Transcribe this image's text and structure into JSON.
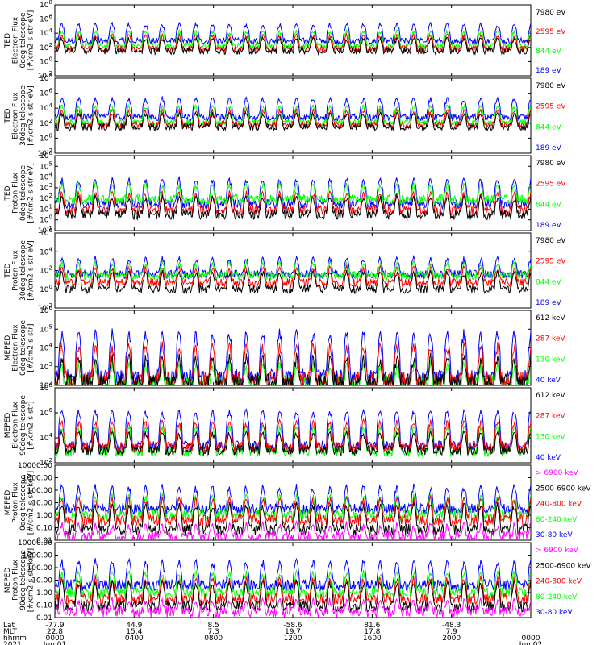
{
  "chart_data": [
    {
      "type": "line",
      "ylabel_lines": [
        "TED",
        "Electron Flux",
        "0deg telescope",
        "[#/cm2-s-str-eV]"
      ],
      "yscale": "log",
      "y_tick_labels": [
        "10^-2",
        "10^0",
        "10^2",
        "10^4",
        "10^6",
        "10^8"
      ],
      "ylim": [
        0.01,
        100000000
      ],
      "xlim": [
        0,
        24
      ],
      "series": [
        {
          "name": "7980 eV",
          "color": "#000000",
          "base": 30,
          "spike": 3000
        },
        {
          "name": "2595 eV",
          "color": "#ff0000",
          "base": 60,
          "spike": 8000
        },
        {
          "name": "844 eV",
          "color": "#00ff00",
          "base": 150,
          "spike": 30000
        },
        {
          "name": "189 eV",
          "color": "#0000ff",
          "base": 800,
          "spike": 300000
        }
      ]
    },
    {
      "type": "line",
      "ylabel_lines": [
        "TED",
        "Electron Flux",
        "30deg telescope",
        "[#/cm2-s-str-eV]"
      ],
      "yscale": "log",
      "y_tick_labels": [
        "10^-2",
        "10^0",
        "10^2",
        "10^4",
        "10^6",
        "10^8"
      ],
      "ylim": [
        0.01,
        100000000
      ],
      "xlim": [
        0,
        24
      ],
      "series": [
        {
          "name": "7980 eV",
          "color": "#000000",
          "base": 30,
          "spike": 3000
        },
        {
          "name": "2595 eV",
          "color": "#ff0000",
          "base": 60,
          "spike": 8000
        },
        {
          "name": "844 eV",
          "color": "#00ff00",
          "base": 120,
          "spike": 30000
        },
        {
          "name": "189 eV",
          "color": "#0000ff",
          "base": 600,
          "spike": 300000
        }
      ]
    },
    {
      "type": "line",
      "ylabel_lines": [
        "TED",
        "Proton Flux",
        "0deg telescope",
        "[#/cm2-s-str-eV]"
      ],
      "yscale": "log",
      "y_tick_labels": [
        "10^-1",
        "10^0",
        "10^1",
        "10^2",
        "10^3",
        "10^4",
        "10^5",
        "10^6"
      ],
      "ylim": [
        0.1,
        1000000
      ],
      "xlim": [
        0,
        24
      ],
      "series": [
        {
          "name": "7980 eV",
          "color": "#000000",
          "base": 3,
          "spike": 200
        },
        {
          "name": "2595 eV",
          "color": "#ff0000",
          "base": 8,
          "spike": 500
        },
        {
          "name": "844 eV",
          "color": "#00ff00",
          "base": 80,
          "spike": 3000
        },
        {
          "name": "189 eV",
          "color": "#0000ff",
          "base": 30,
          "spike": 10000
        }
      ]
    },
    {
      "type": "line",
      "ylabel_lines": [
        "TED",
        "Proton Flux",
        "30deg telescope",
        "[#/cm2-s-str-eV]"
      ],
      "yscale": "log",
      "y_tick_labels": [
        "10^-2",
        "10^0",
        "10^2",
        "10^4",
        "10^6"
      ],
      "ylim": [
        0.01,
        1000000
      ],
      "xlim": [
        0,
        24
      ],
      "series": [
        {
          "name": "7980 eV",
          "color": "#000000",
          "base": 1,
          "spike": 100
        },
        {
          "name": "2595 eV",
          "color": "#ff0000",
          "base": 5,
          "spike": 300
        },
        {
          "name": "844 eV",
          "color": "#00ff00",
          "base": 30,
          "spike": 1000
        },
        {
          "name": "189 eV",
          "color": "#0000ff",
          "base": 40,
          "spike": 3000
        }
      ]
    },
    {
      "type": "line",
      "ylabel_lines": [
        "MEPED",
        "Electron Flux",
        "0deg telescope",
        "[#/cm2-s-str]"
      ],
      "yscale": "log",
      "y_tick_labels": [
        "10^2",
        "10^3",
        "10^4",
        "10^5",
        "10^6"
      ],
      "ylim": [
        100,
        1000000
      ],
      "xlim": [
        0,
        24
      ],
      "series": [
        {
          "name": "612 keV",
          "color": "#000000",
          "base": 150,
          "spike": 5000
        },
        {
          "name": "287 keV",
          "color": "#ff0000",
          "base": 200,
          "spike": 20000
        },
        {
          "name": "130 keV",
          "color": "#00ff00",
          "base": 130,
          "spike": 2000
        },
        {
          "name": "40 keV",
          "color": "#0000ff",
          "base": 250,
          "spike": 100000
        }
      ]
    },
    {
      "type": "line",
      "ylabel_lines": [
        "MEPED",
        "Electron Flux",
        "90deg telescope",
        "[#/cm2-s-str]"
      ],
      "yscale": "log",
      "y_tick_labels": [
        "10^2",
        "10^4",
        "10^6",
        "10^8"
      ],
      "ylim": [
        10,
        100000000
      ],
      "xlim": [
        0,
        24
      ],
      "series": [
        {
          "name": "612 keV",
          "color": "#000000",
          "base": 150,
          "spike": 10000
        },
        {
          "name": "287 keV",
          "color": "#ff0000",
          "base": 300,
          "spike": 100000
        },
        {
          "name": "130 keV",
          "color": "#00ff00",
          "base": 100,
          "spike": 30000
        },
        {
          "name": "40 keV",
          "color": "#0000ff",
          "base": 400,
          "spike": 1000000
        }
      ]
    },
    {
      "type": "line",
      "ylabel_lines": [
        "MEPED",
        "Proton Flux",
        "0deg telescope",
        "[#/cm2-s-str-keV]"
      ],
      "yscale": "log",
      "y_tick_labels": [
        "0.01",
        "0.10",
        "1.00",
        "10.00",
        "100.00",
        "1000.00",
        "10000.00"
      ],
      "ylim": [
        0.01,
        10000
      ],
      "xlim": [
        0,
        24
      ],
      "series": [
        {
          "name": "> 6900 keV",
          "color": "#ff00ff",
          "base": 0.02,
          "spike": 0.3
        },
        {
          "name": "2500-6900 keV",
          "color": "#000000",
          "base": 0.07,
          "spike": 10
        },
        {
          "name": "240-800 keV",
          "color": "#ff0000",
          "base": 0.4,
          "spike": 30
        },
        {
          "name": "80-240 keV",
          "color": "#00ff00",
          "base": 1,
          "spike": 50
        },
        {
          "name": "30-80 keV",
          "color": "#0000ff",
          "base": 3,
          "spike": 300
        }
      ]
    },
    {
      "type": "line",
      "ylabel_lines": [
        "MEPED",
        "Proton Flux",
        "90deg telescope",
        "[#/cm2-s-str-keV]"
      ],
      "yscale": "log",
      "y_tick_labels": [
        "0.01",
        "0.10",
        "1.00",
        "10.00",
        "100.00",
        "1000.00",
        "10000.00"
      ],
      "ylim": [
        0.01,
        10000
      ],
      "xlim": [
        0,
        24
      ],
      "series": [
        {
          "name": "> 6900 keV",
          "color": "#ff00ff",
          "base": 0.03,
          "spike": 0.4
        },
        {
          "name": "2500-6900 keV",
          "color": "#000000",
          "base": 0.08,
          "spike": 10
        },
        {
          "name": "240-800 keV",
          "color": "#ff0000",
          "base": 0.3,
          "spike": 20
        },
        {
          "name": "80-240 keV",
          "color": "#00ff00",
          "base": 1,
          "spike": 60
        },
        {
          "name": "30-80 keV",
          "color": "#0000ff",
          "base": 4,
          "spike": 500
        }
      ]
    }
  ],
  "x_axis": {
    "row_labels": [
      "Lat",
      "MLT",
      "hhmm",
      "2021"
    ],
    "ticks": [
      {
        "x": 0,
        "lat": "-77.9",
        "mlt": "22.8",
        "hhmm": "0000",
        "date": "Jun 01"
      },
      {
        "x": 4,
        "lat": "44.9",
        "mlt": "15.4",
        "hhmm": "0400",
        "date": ""
      },
      {
        "x": 8,
        "lat": "8.5",
        "mlt": "7.3",
        "hhmm": "0800",
        "date": ""
      },
      {
        "x": 12,
        "lat": "-58.6",
        "mlt": "19.7",
        "hhmm": "1200",
        "date": ""
      },
      {
        "x": 16,
        "lat": "81.6",
        "mlt": "17.8",
        "hhmm": "1600",
        "date": ""
      },
      {
        "x": 20,
        "lat": "-48.3",
        "mlt": "7.9",
        "hhmm": "2000",
        "date": ""
      },
      {
        "x": 24,
        "lat": "",
        "mlt": "",
        "hhmm": "0000",
        "date": "Jun 02"
      }
    ]
  }
}
